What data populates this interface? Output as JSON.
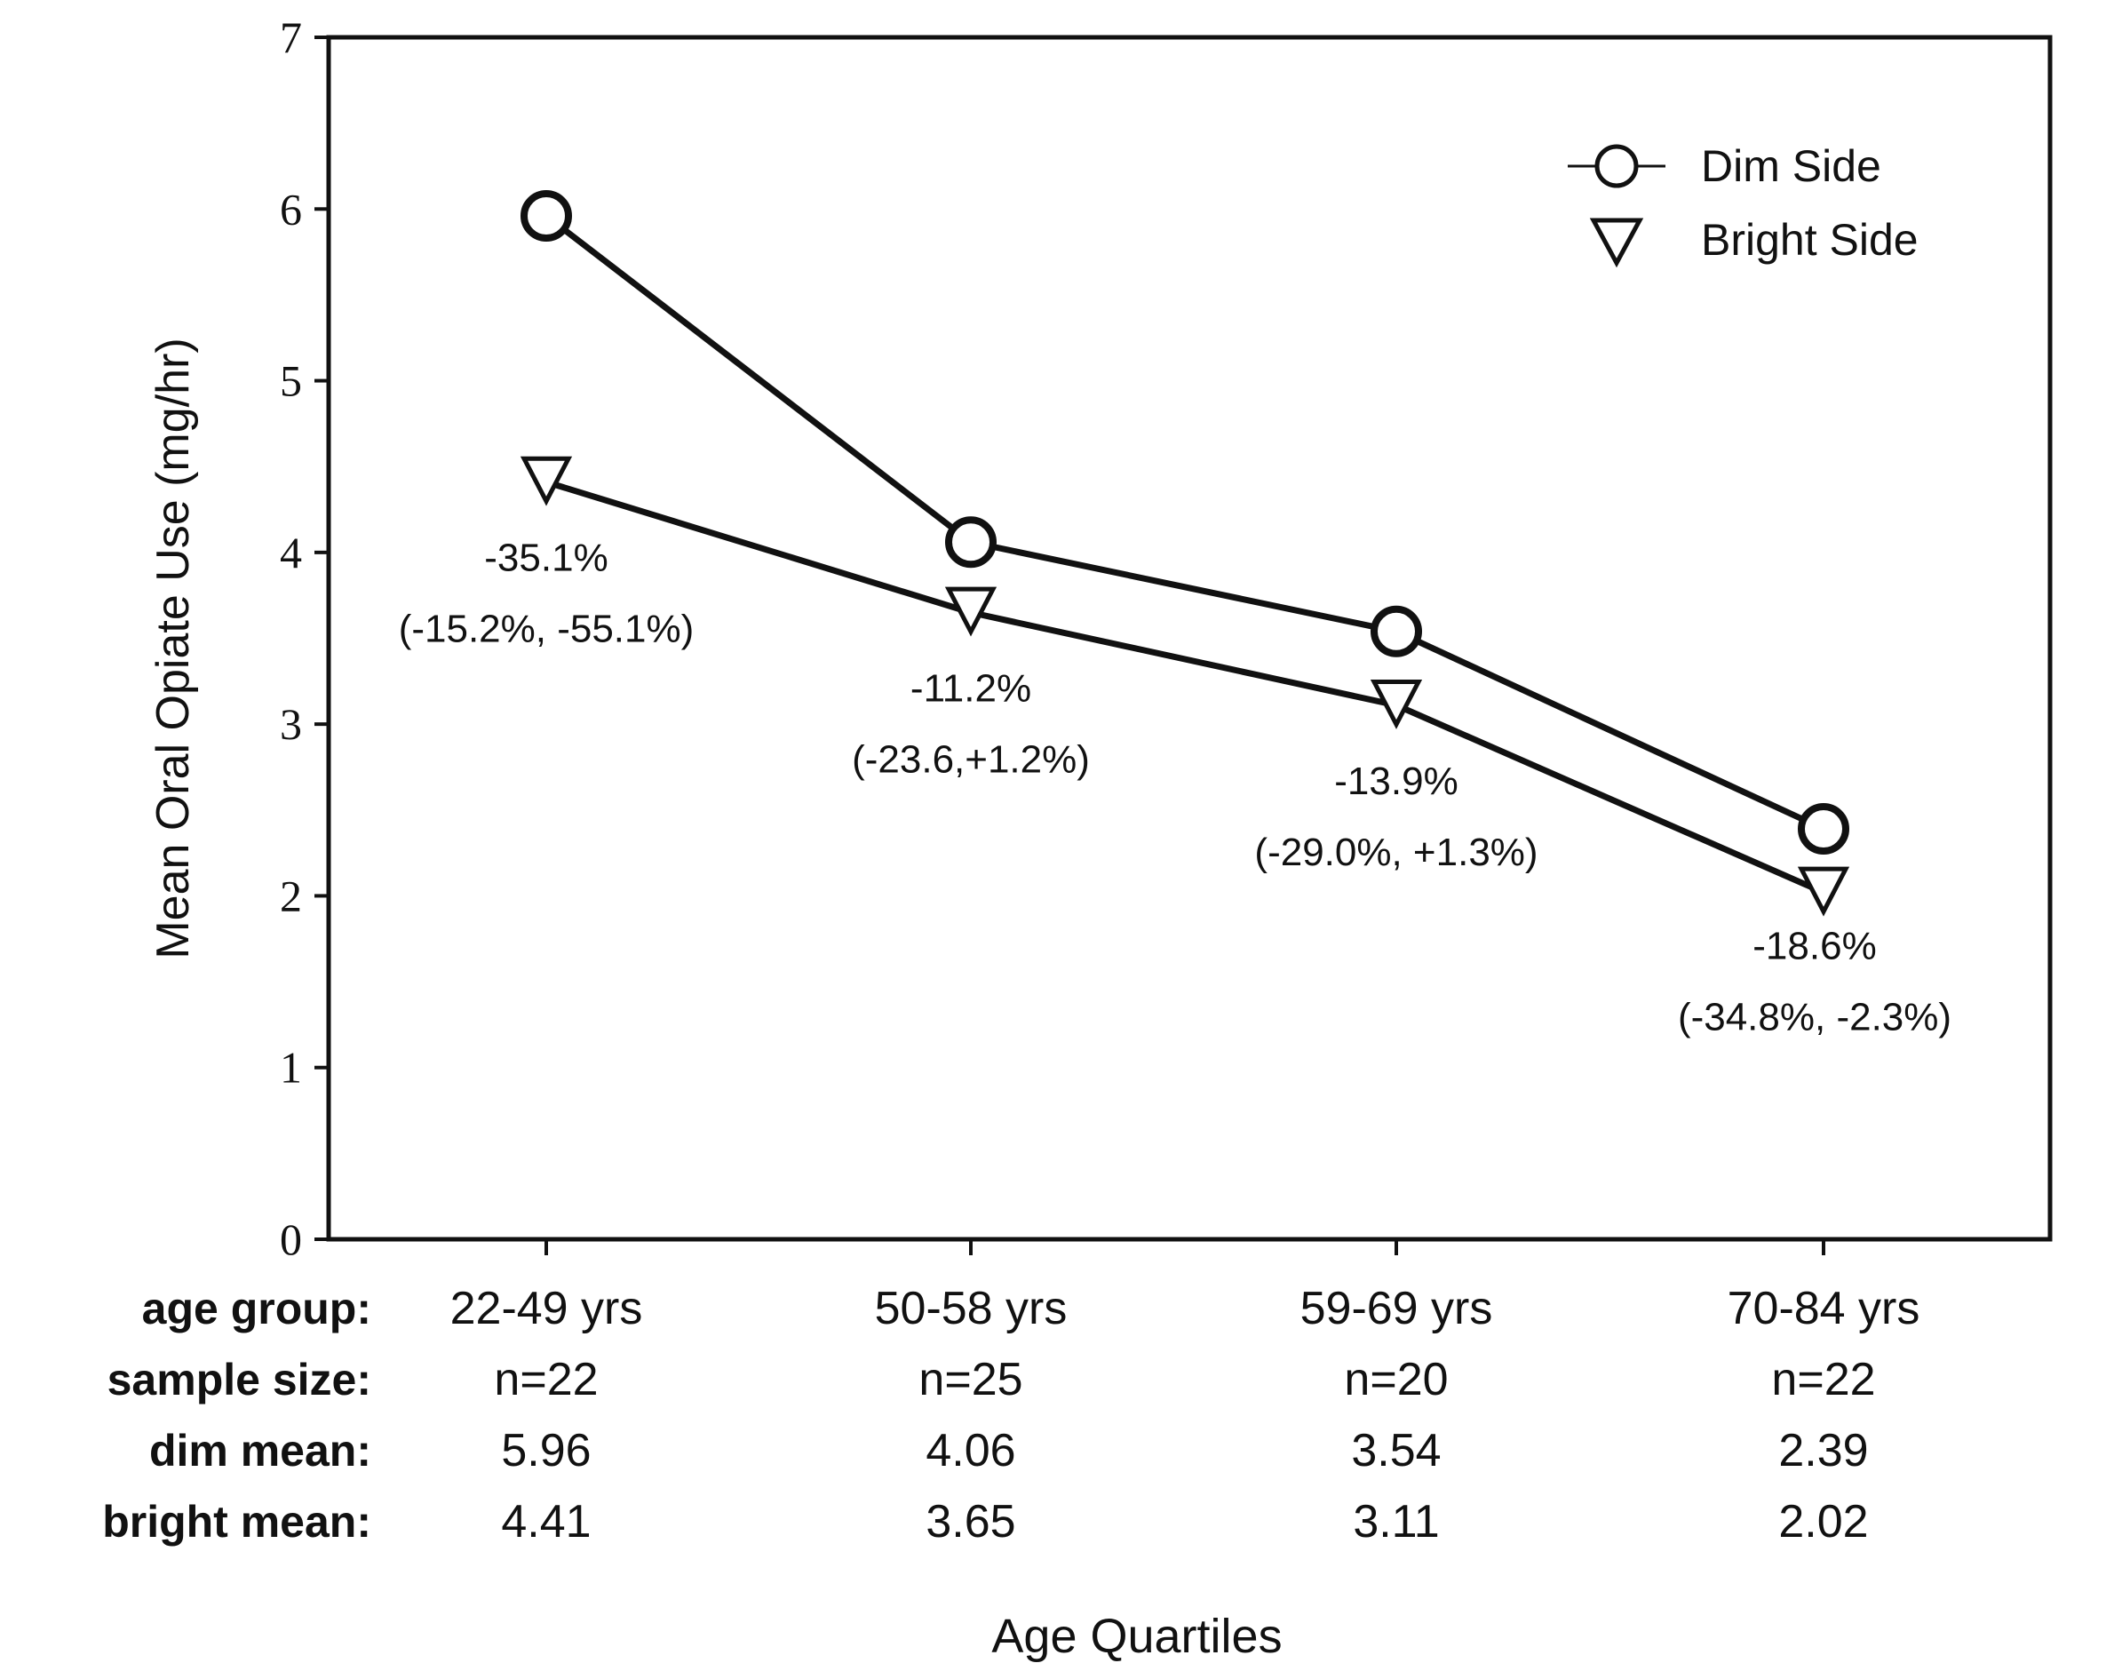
{
  "chart_data": {
    "type": "line",
    "title": "",
    "xlabel": "Age Quartiles",
    "ylabel": "Mean Oral Opiate Use (mg/hr)",
    "ylim": [
      0,
      7
    ],
    "yticks": [
      0,
      1,
      2,
      3,
      4,
      5,
      6,
      7
    ],
    "categories": [
      "22-49 yrs",
      "50-58 yrs",
      "59-69 yrs",
      "70-84 yrs"
    ],
    "series": [
      {
        "name": "Dim Side",
        "marker": "circle",
        "values": [
          5.96,
          4.06,
          3.54,
          2.39
        ]
      },
      {
        "name": "Bright Side",
        "marker": "triangle-down",
        "values": [
          4.41,
          3.65,
          3.11,
          2.02
        ]
      }
    ],
    "annotations": [
      {
        "line1": "-35.1%",
        "line2": "(-15.2%, -55.1%)"
      },
      {
        "line1": "-11.2%",
        "line2": "(-23.6,+1.2%)"
      },
      {
        "line1": "-13.9%",
        "line2": "(-29.0%, +1.3%)"
      },
      {
        "line1": "-18.6%",
        "line2": "(-34.8%, -2.3%)"
      }
    ],
    "legend_position": "top-right",
    "table": {
      "rows": [
        {
          "label": "age group:",
          "cells": [
            "22-49 yrs",
            "50-58 yrs",
            "59-69 yrs",
            "70-84 yrs"
          ]
        },
        {
          "label": "sample size:",
          "cells": [
            "n=22",
            "n=25",
            "n=20",
            "n=22"
          ]
        },
        {
          "label": "dim mean:",
          "cells": [
            "5.96",
            "4.06",
            "3.54",
            "2.39"
          ]
        },
        {
          "label": "bright mean:",
          "cells": [
            "4.41",
            "3.65",
            "3.11",
            "2.02"
          ]
        }
      ]
    }
  },
  "colors": {
    "ink": "#111111",
    "background": "#ffffff"
  }
}
